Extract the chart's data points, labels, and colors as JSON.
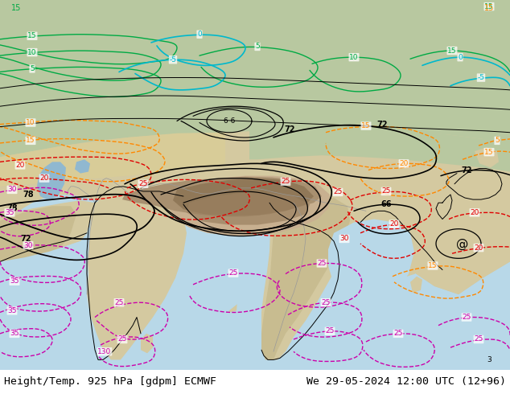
{
  "title_left": "Height/Temp. 925 hPa [gdpm] ECMWF",
  "title_right": "We 29-05-2024 12:00 UTC (12+96)",
  "title_fontsize": 9.5,
  "title_color": "#000000",
  "figure_width": 6.34,
  "figure_height": 4.9,
  "dpi": 100,
  "ocean_color": "#b8d8e8",
  "land_color": "#d4c9a0",
  "land_color2": "#c8bc90",
  "highland_color": "#b8a878",
  "tibet_color": "#c8b090",
  "tibet_dark": "#a89070",
  "mountain_color": "#907858",
  "forest_color": "#b8c8a0",
  "steppe_color": "#d8cc98",
  "water_color": "#90b8d0"
}
